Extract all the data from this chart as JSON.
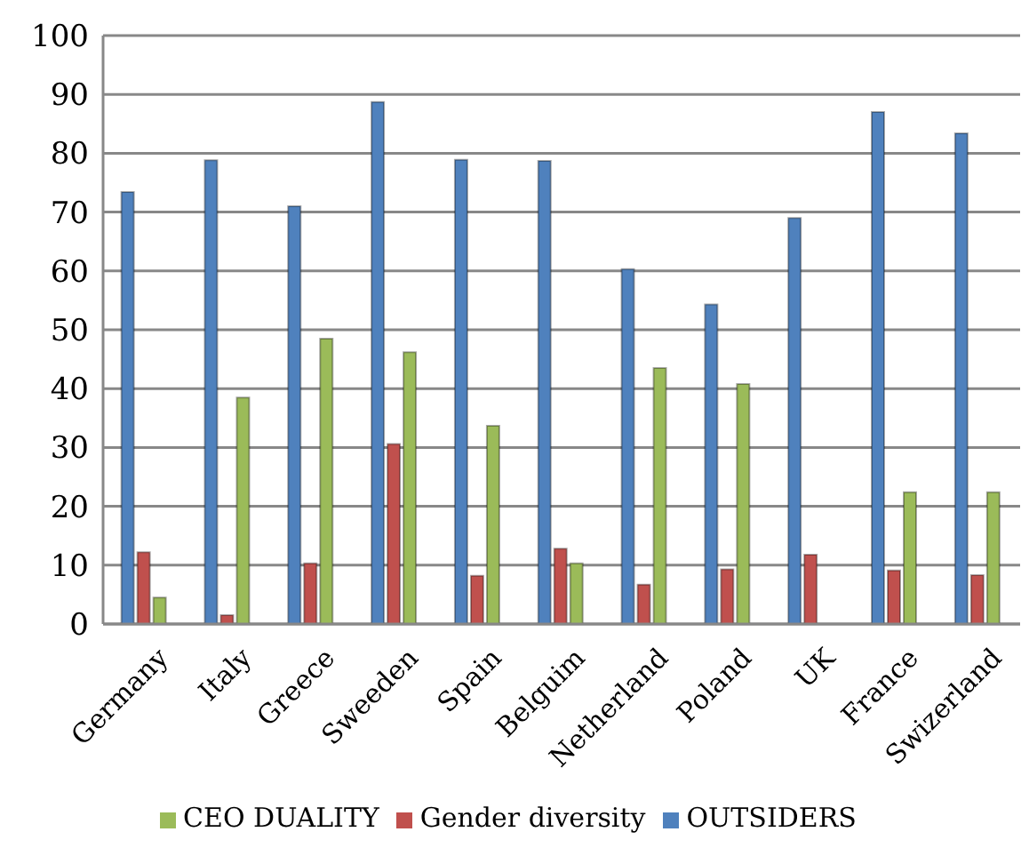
{
  "chart_data": {
    "type": "bar",
    "categories": [
      "Germany",
      "Italy",
      "Greece",
      "Sweeden",
      "Spain",
      "Belguim",
      "Netherland",
      "Poland",
      "UK",
      "France",
      "Swizerland"
    ],
    "series": [
      {
        "name": "OUTSIDERS",
        "color": "#4f81bd",
        "values": [
          73.4,
          78.8,
          71,
          88.7,
          78.9,
          78.7,
          60.3,
          54.3,
          69,
          87,
          83.4
        ]
      },
      {
        "name": "Gender diversity",
        "color": "#c0504d",
        "values": [
          12.2,
          1.5,
          10.3,
          30.6,
          8.2,
          12.8,
          6.7,
          9.3,
          11.8,
          9.1,
          8.3
        ]
      },
      {
        "name": "CEO DUALITY",
        "color": "#9bbb59",
        "values": [
          4.5,
          38.5,
          48.5,
          46.2,
          33.7,
          10.3,
          43.5,
          40.8,
          null,
          22.4,
          22.4
        ]
      }
    ],
    "ylim": [
      0,
      100
    ],
    "yticks": [
      0,
      10,
      20,
      30,
      40,
      50,
      60,
      70,
      80,
      90,
      100
    ],
    "grid": "y",
    "legend": "bottom"
  }
}
